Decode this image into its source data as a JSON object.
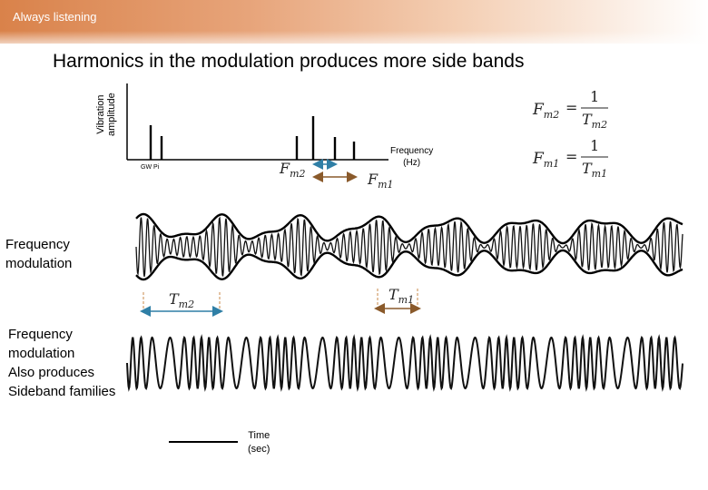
{
  "header": {
    "brand": "Always listening",
    "title": "Harmonics in the modulation produces more side bands"
  },
  "spectrum": {
    "y_axis_label_line1": "Vibration",
    "y_axis_label_line2": "amplitude",
    "x_axis_label_line1": "Frequency",
    "x_axis_label_line2": "(Hz)",
    "corner_label": "GW Pi",
    "arrow_label_fm2": "Fm2",
    "arrow_label_fm1": "Fm1",
    "fm2_color": "#2f7fa6",
    "fm1_color": "#8a5a2b"
  },
  "formulas": {
    "fm2_lhs": "F",
    "fm2_lhs_sub": "m2",
    "fm2_num": "1",
    "fm2_den": "T",
    "fm2_den_sub": "m2",
    "fm1_lhs": "F",
    "fm1_lhs_sub": "m1",
    "fm1_num": "1",
    "fm1_den": "T",
    "fm1_den_sub": "m1",
    "equals": "="
  },
  "waveforms": {
    "fm_label_line1": "Frequency",
    "fm_label_line2": "modulation",
    "period_tm2": "Tm2",
    "period_tm1": "Tm1",
    "sideband_label_line1": "Frequency",
    "sideband_label_line2": "modulation",
    "sideband_label_line3": "Also produces",
    "sideband_label_line4": "Sideband families"
  },
  "time_axis": {
    "label_line1": "Time",
    "label_line2": "(sec)"
  }
}
